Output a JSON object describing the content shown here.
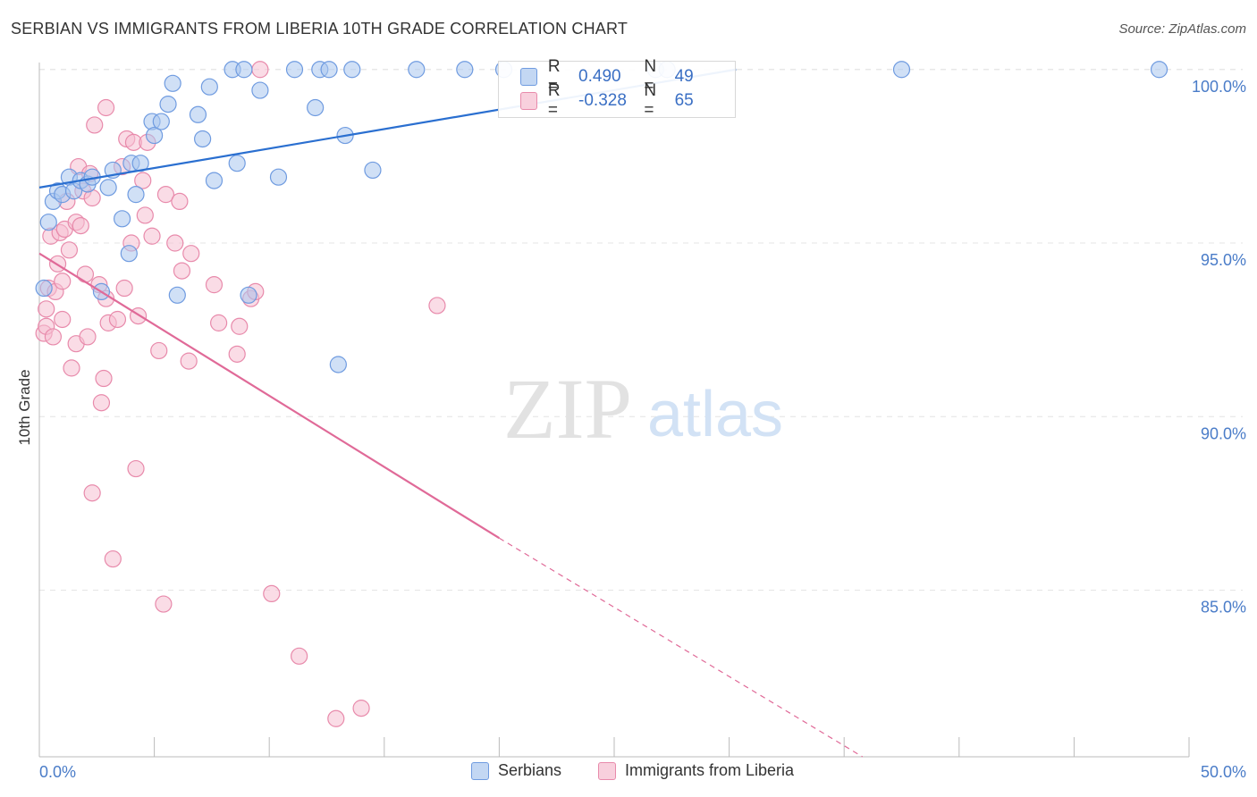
{
  "header": {
    "title": "SERBIAN VS IMMIGRANTS FROM LIBERIA 10TH GRADE CORRELATION CHART",
    "source": "Source: ZipAtlas.com"
  },
  "watermark": {
    "zip": "ZIP",
    "atlas": "atlas"
  },
  "legend": {
    "r_label": "R =",
    "n_label": "N =",
    "series": [
      {
        "name": "Serbians",
        "r": "0.490",
        "n": "49",
        "fill": "#a9c6ee",
        "stroke": "#6f9be0"
      },
      {
        "name": "Immigrants from Liberia",
        "r": "-0.328",
        "n": "65",
        "fill": "#f6bfd1",
        "stroke": "#e88aab"
      }
    ]
  },
  "colors": {
    "blue_line": "#2a6fd0",
    "pink_line": "#e06a98",
    "tick_text": "#4a7cc8",
    "grid": "#e4e4e4"
  },
  "chart_data": {
    "type": "scatter",
    "title": "SERBIAN VS IMMIGRANTS FROM LIBERIA 10TH GRADE CORRELATION CHART",
    "xlabel": "",
    "ylabel": "10th Grade",
    "xlim": [
      0,
      50
    ],
    "ylim": [
      80.2,
      100.2
    ],
    "x_tick_labels": [
      "0.0%",
      "50.0%"
    ],
    "y_ticks": [
      85,
      90,
      95,
      100
    ],
    "y_tick_labels": [
      "85.0%",
      "90.0%",
      "95.0%",
      "100.0%"
    ],
    "series": [
      {
        "name": "Serbians",
        "points": [
          [
            0.2,
            93.7
          ],
          [
            0.4,
            95.6
          ],
          [
            0.6,
            96.2
          ],
          [
            0.8,
            96.5
          ],
          [
            1.0,
            96.4
          ],
          [
            1.3,
            96.9
          ],
          [
            1.5,
            96.5
          ],
          [
            1.8,
            96.8
          ],
          [
            2.1,
            96.7
          ],
          [
            2.3,
            96.9
          ],
          [
            3.0,
            96.6
          ],
          [
            3.2,
            97.1
          ],
          [
            3.6,
            95.7
          ],
          [
            3.9,
            94.7
          ],
          [
            4.0,
            97.3
          ],
          [
            4.2,
            96.4
          ],
          [
            4.4,
            97.3
          ],
          [
            4.9,
            98.5
          ],
          [
            5.0,
            98.1
          ],
          [
            5.3,
            98.5
          ],
          [
            5.6,
            99.0
          ],
          [
            5.8,
            99.6
          ],
          [
            6.0,
            93.5
          ],
          [
            6.9,
            98.7
          ],
          [
            7.1,
            98.0
          ],
          [
            7.4,
            99.5
          ],
          [
            7.6,
            96.8
          ],
          [
            8.4,
            100.0
          ],
          [
            8.6,
            97.3
          ],
          [
            8.9,
            100.0
          ],
          [
            9.1,
            93.5
          ],
          [
            9.6,
            99.4
          ],
          [
            10.4,
            96.9
          ],
          [
            11.1,
            100.0
          ],
          [
            12.0,
            98.9
          ],
          [
            12.2,
            100.0
          ],
          [
            12.6,
            100.0
          ],
          [
            13.0,
            91.5
          ],
          [
            13.3,
            98.1
          ],
          [
            13.6,
            100.0
          ],
          [
            14.5,
            97.1
          ],
          [
            16.4,
            100.0
          ],
          [
            18.5,
            100.0
          ],
          [
            20.2,
            100.0
          ],
          [
            26.8,
            100.0
          ],
          [
            27.3,
            100.0
          ],
          [
            37.5,
            100.0
          ],
          [
            48.7,
            100.0
          ],
          [
            2.7,
            93.6
          ]
        ],
        "trend": {
          "x": [
            0.0,
            30.3
          ],
          "y": [
            96.6,
            100.0
          ]
        }
      },
      {
        "name": "Immigrants from Liberia",
        "points": [
          [
            0.2,
            92.4
          ],
          [
            0.3,
            92.6
          ],
          [
            0.3,
            93.1
          ],
          [
            0.4,
            93.7
          ],
          [
            0.5,
            95.2
          ],
          [
            0.6,
            92.3
          ],
          [
            0.7,
            93.6
          ],
          [
            0.8,
            94.4
          ],
          [
            0.9,
            95.3
          ],
          [
            1.0,
            93.9
          ],
          [
            1.0,
            92.8
          ],
          [
            1.1,
            95.4
          ],
          [
            1.2,
            96.2
          ],
          [
            1.3,
            94.8
          ],
          [
            1.4,
            91.4
          ],
          [
            1.6,
            95.6
          ],
          [
            1.6,
            92.1
          ],
          [
            1.7,
            97.2
          ],
          [
            1.8,
            95.5
          ],
          [
            1.9,
            96.5
          ],
          [
            2.0,
            94.1
          ],
          [
            2.1,
            92.3
          ],
          [
            2.2,
            97.0
          ],
          [
            2.3,
            96.3
          ],
          [
            2.3,
            87.8
          ],
          [
            2.6,
            93.8
          ],
          [
            2.7,
            90.4
          ],
          [
            2.8,
            91.1
          ],
          [
            2.9,
            93.4
          ],
          [
            3.0,
            92.7
          ],
          [
            3.2,
            85.9
          ],
          [
            3.4,
            92.8
          ],
          [
            3.6,
            97.2
          ],
          [
            3.7,
            93.7
          ],
          [
            3.8,
            98.0
          ],
          [
            4.0,
            95.0
          ],
          [
            4.1,
            97.9
          ],
          [
            4.2,
            88.5
          ],
          [
            4.3,
            92.9
          ],
          [
            4.5,
            96.8
          ],
          [
            4.6,
            95.8
          ],
          [
            4.7,
            97.9
          ],
          [
            4.9,
            95.2
          ],
          [
            5.2,
            91.9
          ],
          [
            5.4,
            84.6
          ],
          [
            5.5,
            96.4
          ],
          [
            5.9,
            95.0
          ],
          [
            6.1,
            96.2
          ],
          [
            6.2,
            94.2
          ],
          [
            6.5,
            91.6
          ],
          [
            6.6,
            94.7
          ],
          [
            7.6,
            93.8
          ],
          [
            7.8,
            92.7
          ],
          [
            8.6,
            91.8
          ],
          [
            8.7,
            92.6
          ],
          [
            9.2,
            93.4
          ],
          [
            9.4,
            93.6
          ],
          [
            9.6,
            100.0
          ],
          [
            10.1,
            84.9
          ],
          [
            11.3,
            83.1
          ],
          [
            12.9,
            81.3
          ],
          [
            14.0,
            81.6
          ],
          [
            17.3,
            93.2
          ],
          [
            2.4,
            98.4
          ],
          [
            2.9,
            98.9
          ]
        ],
        "trend": {
          "x": [
            0.0,
            20.0
          ],
          "y": [
            94.7,
            86.5
          ]
        },
        "trend_extension": {
          "x": [
            20.0,
            35.8
          ],
          "y": [
            86.5,
            80.2
          ]
        }
      }
    ]
  }
}
